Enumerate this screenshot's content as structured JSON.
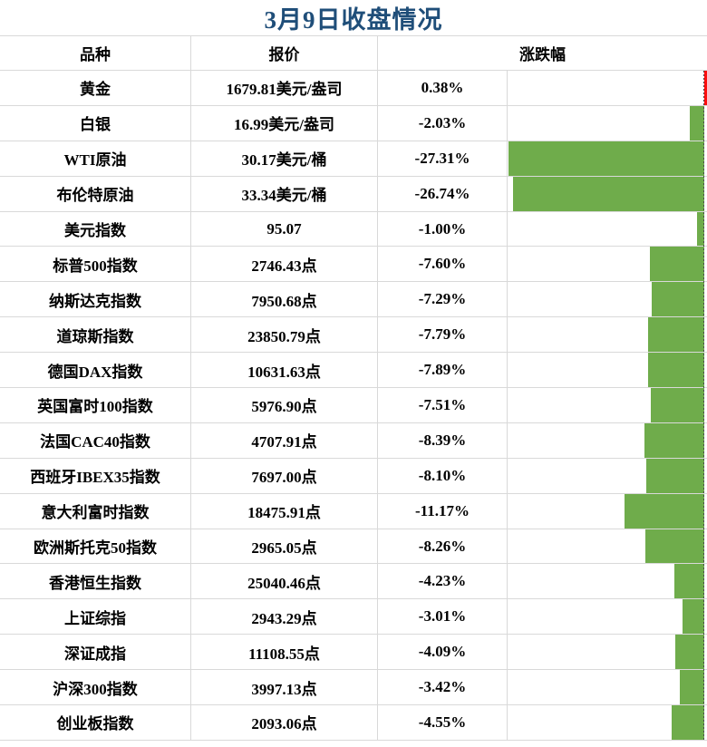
{
  "title": "3月9日收盘情况",
  "table": {
    "headers": {
      "variety": "品种",
      "quote": "报价",
      "change": "涨跌幅"
    }
  },
  "colors": {
    "title_blue": "#1f4e79",
    "bar_negative_green": "#6fac4b",
    "bar_positive_red": "#fb0f0f",
    "gridline_gray": "#d9d9d9"
  },
  "chart_data": {
    "type": "bar",
    "orientation": "horizontal",
    "value_unit": "percent",
    "axis_max_abs_pct": 27.31,
    "zero_axis": "right dotted line, negative bars extend left, positive bars extend right",
    "legend": "none",
    "rows": [
      {
        "name": "黄金",
        "quote": "1679.81美元/盎司",
        "change_pct": 0.38,
        "change_label": "0.38%"
      },
      {
        "name": "白银",
        "quote": "16.99美元/盎司",
        "change_pct": -2.03,
        "change_label": "-2.03%"
      },
      {
        "name": "WTI原油",
        "quote": "30.17美元/桶",
        "change_pct": -27.31,
        "change_label": "-27.31%"
      },
      {
        "name": "布伦特原油",
        "quote": "33.34美元/桶",
        "change_pct": -26.74,
        "change_label": "-26.74%"
      },
      {
        "name": "美元指数",
        "quote": "95.07",
        "change_pct": -1.0,
        "change_label": "-1.00%"
      },
      {
        "name": "标普500指数",
        "quote": "2746.43点",
        "change_pct": -7.6,
        "change_label": "-7.60%"
      },
      {
        "name": "纳斯达克指数",
        "quote": "7950.68点",
        "change_pct": -7.29,
        "change_label": "-7.29%"
      },
      {
        "name": "道琼斯指数",
        "quote": "23850.79点",
        "change_pct": -7.79,
        "change_label": "-7.79%"
      },
      {
        "name": "德国DAX指数",
        "quote": "10631.63点",
        "change_pct": -7.89,
        "change_label": "-7.89%"
      },
      {
        "name": "英国富时100指数",
        "quote": "5976.90点",
        "change_pct": -7.51,
        "change_label": "-7.51%"
      },
      {
        "name": "法国CAC40指数",
        "quote": "4707.91点",
        "change_pct": -8.39,
        "change_label": "-8.39%"
      },
      {
        "name": "西班牙IBEX35指数",
        "quote": "7697.00点",
        "change_pct": -8.1,
        "change_label": "-8.10%"
      },
      {
        "name": "意大利富时指数",
        "quote": "18475.91点",
        "change_pct": -11.17,
        "change_label": "-11.17%"
      },
      {
        "name": "欧洲斯托克50指数",
        "quote": "2965.05点",
        "change_pct": -8.26,
        "change_label": "-8.26%"
      },
      {
        "name": "香港恒生指数",
        "quote": "25040.46点",
        "change_pct": -4.23,
        "change_label": "-4.23%"
      },
      {
        "name": "上证综指",
        "quote": "2943.29点",
        "change_pct": -3.01,
        "change_label": "-3.01%"
      },
      {
        "name": "深证成指",
        "quote": "11108.55点",
        "change_pct": -4.09,
        "change_label": "-4.09%"
      },
      {
        "name": "沪深300指数",
        "quote": "3997.13点",
        "change_pct": -3.42,
        "change_label": "-3.42%"
      },
      {
        "name": "创业板指数",
        "quote": "2093.06点",
        "change_pct": -4.55,
        "change_label": "-4.55%"
      }
    ]
  }
}
